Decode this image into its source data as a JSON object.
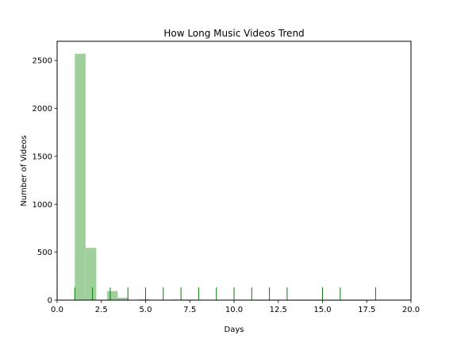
{
  "chart_data": {
    "type": "bar",
    "title": "How Long Music Videos Trend",
    "xlabel": "Days",
    "ylabel": "Number of Videos",
    "xlim": [
      0,
      20
    ],
    "ylim": [
      0,
      2700
    ],
    "xticks": [
      0.0,
      2.5,
      5.0,
      7.5,
      10.0,
      12.5,
      15.0,
      17.5,
      20.0
    ],
    "xtick_labels": [
      "0.0",
      "2.5",
      "5.0",
      "7.5",
      "10.0",
      "12.5",
      "15.0",
      "17.5",
      "20.0"
    ],
    "yticks": [
      0,
      500,
      1000,
      1500,
      2000,
      2500
    ],
    "ytick_labels": [
      "0",
      "500",
      "1000",
      "1500",
      "2000",
      "2500"
    ],
    "grid": false,
    "colors": {
      "bars": "#9fd09b",
      "rug": "#0c7a0c"
    },
    "bins": [
      {
        "x0": 1.0,
        "x1": 1.607,
        "count": 2570
      },
      {
        "x0": 1.607,
        "x1": 2.214,
        "count": 545
      },
      {
        "x0": 2.214,
        "x1": 2.821,
        "count": 0
      },
      {
        "x0": 2.821,
        "x1": 3.428,
        "count": 95
      },
      {
        "x0": 3.428,
        "x1": 4.035,
        "count": 25
      },
      {
        "x0": 4.035,
        "x1": 4.642,
        "count": 0
      },
      {
        "x0": 4.642,
        "x1": 5.249,
        "count": 8
      },
      {
        "x0": 5.249,
        "x1": 5.856,
        "count": 0
      },
      {
        "x0": 5.856,
        "x1": 6.463,
        "count": 0
      },
      {
        "x0": 6.463,
        "x1": 7.07,
        "count": 6
      },
      {
        "x0": 7.07,
        "x1": 7.677,
        "count": 5
      },
      {
        "x0": 7.677,
        "x1": 8.284,
        "count": 5
      },
      {
        "x0": 8.284,
        "x1": 8.891,
        "count": 4
      },
      {
        "x0": 8.891,
        "x1": 9.498,
        "count": 3
      },
      {
        "x0": 9.498,
        "x1": 10.105,
        "count": 3
      },
      {
        "x0": 10.105,
        "x1": 10.712,
        "count": 2
      },
      {
        "x0": 10.712,
        "x1": 11.319,
        "count": 2
      },
      {
        "x0": 11.319,
        "x1": 11.926,
        "count": 1
      },
      {
        "x0": 11.926,
        "x1": 12.533,
        "count": 2
      },
      {
        "x0": 12.533,
        "x1": 13.14,
        "count": 2
      },
      {
        "x0": 13.14,
        "x1": 13.747,
        "count": 1
      },
      {
        "x0": 13.747,
        "x1": 14.354,
        "count": 1
      },
      {
        "x0": 14.354,
        "x1": 14.961,
        "count": 1
      },
      {
        "x0": 14.961,
        "x1": 15.568,
        "count": 1
      },
      {
        "x0": 15.568,
        "x1": 16.175,
        "count": 1
      },
      {
        "x0": 16.175,
        "x1": 16.782,
        "count": 1
      },
      {
        "x0": 16.782,
        "x1": 17.389,
        "count": 1
      },
      {
        "x0": 17.389,
        "x1": 17.996,
        "count": 1
      }
    ],
    "rug": [
      1,
      2,
      3,
      4,
      5,
      6,
      7,
      8,
      9,
      10,
      11,
      12,
      13,
      15,
      16,
      18
    ]
  }
}
